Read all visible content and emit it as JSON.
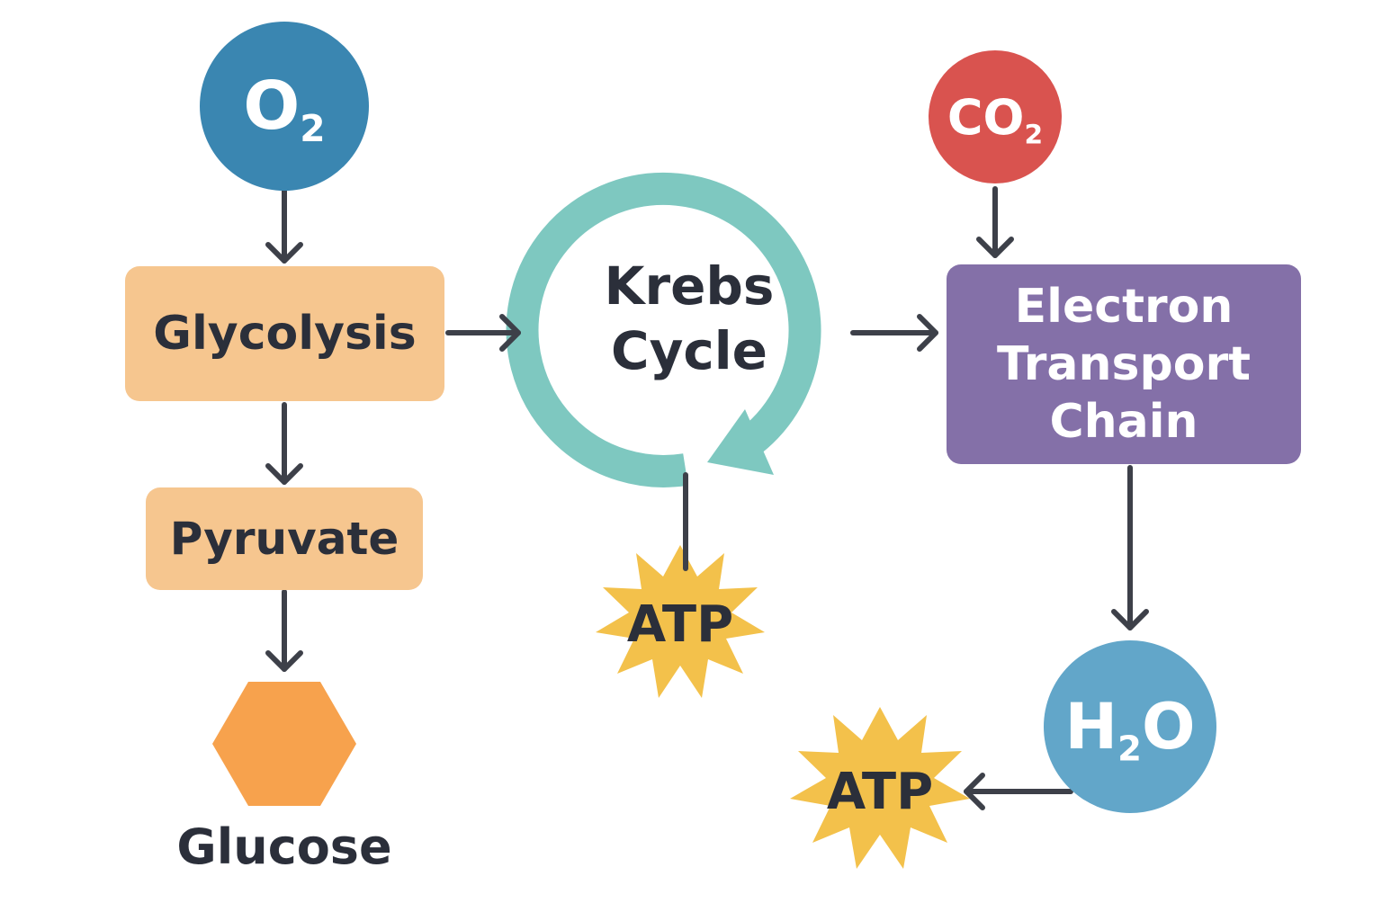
{
  "colors": {
    "o2": "#3a86b1",
    "co2": "#d9534f",
    "h2o": "#62a6c9",
    "step": "#f6c68f",
    "etc": "#8470a8",
    "krebs_ring": "#7ec8c0",
    "atp": "#f3c14b",
    "glucose": "#f7a24d",
    "arrow": "#3d4049",
    "text": "#2b2f3a"
  },
  "nodes": {
    "o2": {
      "main": "O",
      "sub": "2"
    },
    "co2": {
      "main": "CO",
      "sub": "2"
    },
    "h2o": {
      "pre": "H",
      "sub": "2",
      "post": "O"
    },
    "glycolysis": "Glycolysis",
    "pyruvate": "Pyruvate",
    "glucose": "Glucose",
    "krebs_line1": "Krebs",
    "krebs_line2": "Cycle",
    "etc_line1": "Electron",
    "etc_line2": "Transport",
    "etc_line3": "Chain",
    "atp_krebs": "ATP",
    "atp_etc": "ATP"
  }
}
